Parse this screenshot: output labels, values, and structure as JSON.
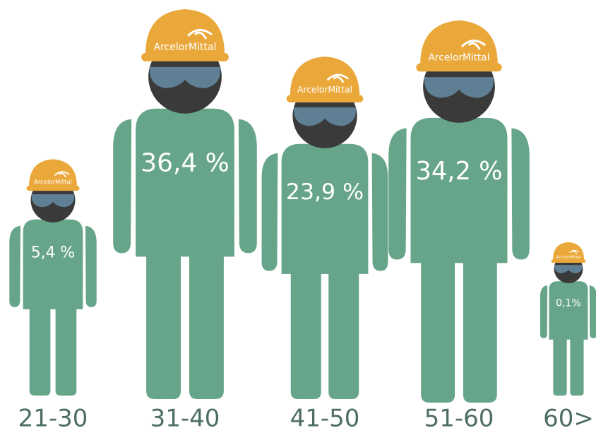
{
  "chart_data": {
    "type": "pictograph",
    "brand": "ArcelorMittal",
    "categories": [
      "21-30",
      "31-40",
      "41-50",
      "51-60",
      "60>"
    ],
    "values": [
      5.4,
      36.4,
      23.9,
      34.2,
      0.1
    ],
    "value_labels": [
      "5,4 %",
      "36,4 %",
      "23,9 %",
      "34,2 %",
      "0,1%"
    ],
    "color": "#67a58a"
  }
}
